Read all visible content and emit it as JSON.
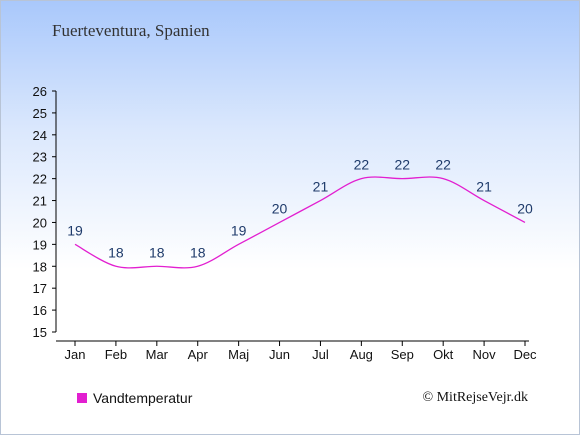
{
  "colors": {
    "series": "#e21fd0",
    "axis": "#000000"
  },
  "chart_data": {
    "type": "line",
    "title": "Fuerteventura, Spanien",
    "categories": [
      "Jan",
      "Feb",
      "Mar",
      "Apr",
      "Maj",
      "Jun",
      "Jul",
      "Aug",
      "Sep",
      "Okt",
      "Nov",
      "Dec"
    ],
    "series": [
      {
        "name": "Vandtemperatur",
        "values": [
          19,
          18,
          18,
          18,
          19,
          20,
          21,
          22,
          22,
          22,
          21,
          20
        ]
      }
    ],
    "ylim": [
      15,
      26
    ],
    "yticks": [
      15,
      16,
      17,
      18,
      19,
      20,
      21,
      22,
      23,
      24,
      25,
      26
    ],
    "grid": false,
    "legend": "bottom-left"
  },
  "footer": {
    "copyright": "© MitRejseVejr.dk"
  }
}
